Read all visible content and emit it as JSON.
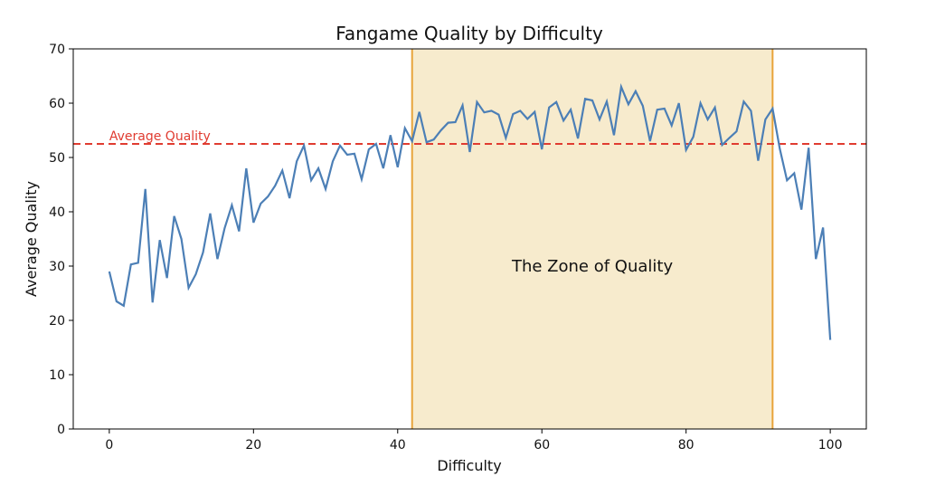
{
  "chart_data": {
    "type": "line",
    "title": "Fangame Quality by Difficulty",
    "xlabel": "Difficulty",
    "ylabel": "Average Quality",
    "xlim": [
      -5,
      105
    ],
    "ylim": [
      0,
      70
    ],
    "xticks": [
      0,
      20,
      40,
      60,
      80,
      100
    ],
    "yticks": [
      0,
      10,
      20,
      30,
      40,
      50,
      60,
      70
    ],
    "grid": false,
    "series": [
      {
        "name": "Average Quality",
        "color": "#4c7fb6",
        "x_start": 0,
        "values": [
          29,
          23.5,
          22.7,
          30.3,
          30.6,
          44.2,
          23.3,
          34.8,
          27.8,
          39.2,
          35,
          26,
          28.5,
          32.5,
          39.7,
          31.3,
          37,
          41.2,
          36.4,
          48,
          38,
          41.5,
          42.8,
          44.8,
          47.6,
          42.5,
          49.3,
          52.2,
          45.8,
          48,
          44.2,
          49.3,
          52.2,
          50.5,
          50.7,
          46,
          51.5,
          52.5,
          48,
          54.1,
          48.2,
          55.4,
          53,
          58.4,
          52.8,
          53.3,
          55,
          56.4,
          56.5,
          59.6,
          51,
          60.2,
          58.3,
          58.6,
          57.9,
          53.6,
          58,
          58.6,
          57.1,
          58.4,
          51.5,
          59.2,
          60.2,
          56.8,
          58.8,
          53.5,
          60.8,
          60.5,
          57,
          60.3,
          54.1,
          63,
          59.8,
          62.2,
          59.5,
          53,
          58.8,
          59,
          55.9,
          60,
          51.4,
          53.8,
          60,
          57,
          59.2,
          52.3,
          53.6,
          54.8,
          60.3,
          58.6,
          49.4,
          57,
          59,
          51.6,
          45.8,
          47.1,
          40.4,
          51.8,
          31.3,
          37.1,
          16.4
        ]
      }
    ],
    "average_line": {
      "value": 52.5,
      "label": "Average Quality",
      "color": "#e03c31"
    },
    "zone": {
      "start": 42,
      "end": 92,
      "label": "The Zone of Quality",
      "fill": "#f7ebcd",
      "edge": "#e8a43a"
    }
  }
}
